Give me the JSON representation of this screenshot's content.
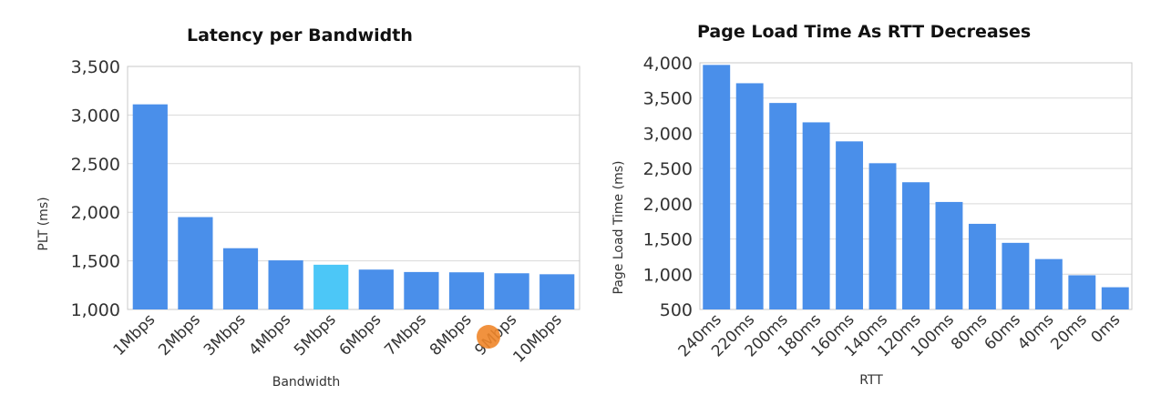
{
  "colors": {
    "bar": "#4a8fea",
    "highlight": "#4cc7f7",
    "cursor": "#f0862a"
  },
  "chart_data": [
    {
      "type": "bar",
      "title": "Latency per Bandwidth",
      "xlabel": "Bandwidth",
      "ylabel": "PLT (ms)",
      "categories": [
        "1Mbps",
        "2Mbps",
        "3Mbps",
        "4Mbps",
        "5Mbps",
        "6Mbps",
        "7Mbps",
        "8Mbps",
        "9Mbps",
        "10Mbps"
      ],
      "values": [
        3110,
        1950,
        1630,
        1505,
        1460,
        1410,
        1385,
        1382,
        1372,
        1362
      ],
      "highlighted_category": "5Mbps",
      "ylim": [
        1000,
        3500
      ],
      "yticks": [
        1000,
        1500,
        2000,
        2500,
        3000,
        3500
      ],
      "ytick_labels": [
        "1,000",
        "1,500",
        "2,000",
        "2,500",
        "3,000",
        "3,500"
      ],
      "grid": true
    },
    {
      "type": "bar",
      "title": "Page Load Time As RTT Decreases",
      "xlabel": "RTT",
      "ylabel": "Page Load Time (ms)",
      "categories": [
        "240ms",
        "220ms",
        "200ms",
        "180ms",
        "160ms",
        "140ms",
        "120ms",
        "100ms",
        "80ms",
        "60ms",
        "40ms",
        "20ms",
        "0ms"
      ],
      "values": [
        3970,
        3710,
        3430,
        3155,
        2885,
        2575,
        2305,
        2025,
        1715,
        1445,
        1215,
        985,
        815
      ],
      "ylim": [
        500,
        4000
      ],
      "yticks": [
        500,
        1000,
        1500,
        2000,
        2500,
        3000,
        3500,
        4000
      ],
      "ytick_labels": [
        "500",
        "1,000",
        "1,500",
        "2,000",
        "2,500",
        "3,000",
        "3,500",
        "4,000"
      ],
      "grid": true
    }
  ]
}
